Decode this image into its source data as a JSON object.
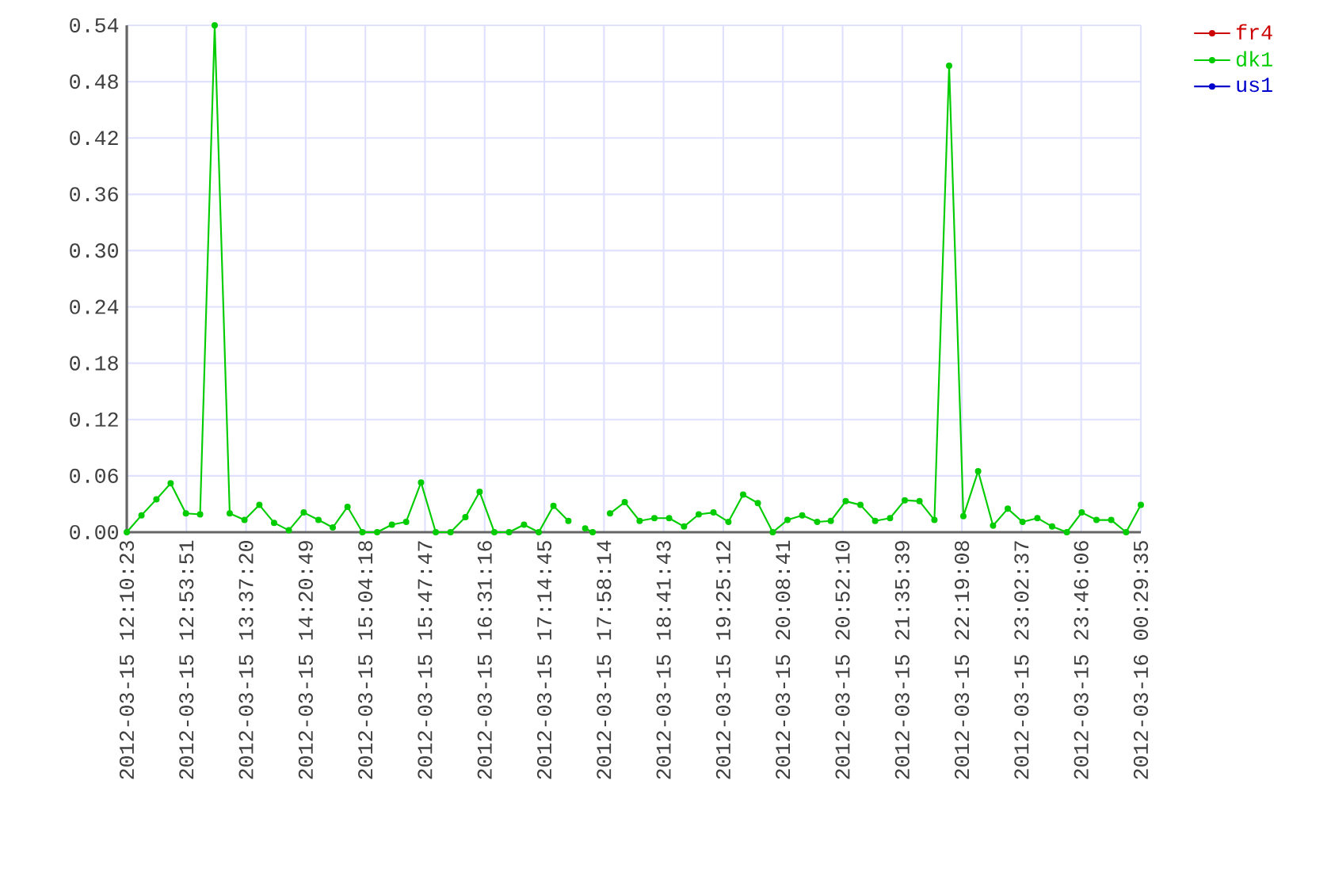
{
  "chart_data": {
    "type": "line",
    "x": [
      "2012-03-15T12:10:23",
      "2012-03-15T12:21:07",
      "2012-03-15T12:31:59",
      "2012-03-15T12:42:22",
      "2012-03-15T12:53:28",
      "2012-03-15T13:03:50",
      "2012-03-15T13:14:28",
      "2012-03-15T13:25:26",
      "2012-03-15T13:36:11",
      "2012-03-15T13:47:02",
      "2012-03-15T13:57:47",
      "2012-03-15T14:08:31",
      "2012-03-15T14:19:23",
      "2012-03-15T14:30:07",
      "2012-03-15T14:40:34",
      "2012-03-15T14:51:18",
      "2012-03-15T15:02:10",
      "2012-03-15T15:12:54",
      "2012-03-15T15:23:38",
      "2012-03-15T15:34:01",
      "2012-03-15T15:44:53",
      "2012-03-15T15:55:37",
      "2012-03-15T16:06:22",
      "2012-03-15T16:17:13",
      "2012-03-15T16:27:36",
      "2012-03-15T16:38:20",
      "2012-03-15T16:49:05",
      "2012-03-15T16:59:56",
      "2012-03-15T17:10:41",
      "2012-03-15T17:21:25",
      "2012-03-15T17:32:17",
      "2012-03-15T17:38:24",
      "2012-03-15T17:44:31",
      "2012-03-15T17:49:59",
      "2012-03-15T17:56:17",
      "2012-03-15T18:02:38",
      "2012-03-15T18:13:23",
      "2012-03-15T18:24:14",
      "2012-03-15T18:34:59",
      "2012-03-15T18:45:43",
      "2012-03-15T18:56:35",
      "2012-03-15T19:07:19",
      "2012-03-15T19:18:04",
      "2012-03-15T19:28:55",
      "2012-03-15T19:39:40",
      "2012-03-15T19:50:24",
      "2012-03-15T20:01:16",
      "2012-03-15T20:12:00",
      "2012-03-15T20:22:44",
      "2012-03-15T20:33:36",
      "2012-03-15T20:43:34",
      "2012-03-15T20:54:25",
      "2012-03-15T21:05:10",
      "2012-03-15T21:15:54",
      "2012-03-15T21:26:46",
      "2012-03-15T21:37:30",
      "2012-03-15T21:48:14",
      "2012-03-15T21:59:06",
      "2012-03-15T22:09:50",
      "2012-03-15T22:20:13",
      "2012-03-15T22:30:58",
      "2012-03-15T22:41:49",
      "2012-03-15T22:52:34",
      "2012-03-15T23:03:18",
      "2012-03-15T23:14:10",
      "2012-03-15T23:24:54",
      "2012-03-15T23:35:38",
      "2012-03-15T23:46:30",
      "2012-03-15T23:57:14",
      "2012-03-16T00:07:59",
      "2012-03-16T00:18:50",
      "2012-03-16T00:29:35"
    ],
    "series": [
      {
        "name": "fr4",
        "color": "#cc0000",
        "values": [
          null,
          null,
          null,
          null,
          null,
          null,
          null,
          null,
          null,
          null,
          null,
          null,
          null,
          null,
          null,
          null,
          null,
          null,
          null,
          null,
          null,
          null,
          null,
          null,
          null,
          null,
          null,
          null,
          null,
          null,
          null,
          null,
          null,
          null,
          null,
          null,
          null,
          null,
          null,
          null,
          null,
          null,
          null,
          null,
          null,
          null,
          null,
          null,
          null,
          null,
          null,
          null,
          null,
          null,
          null,
          null,
          null,
          null,
          null,
          null,
          null,
          null,
          null,
          null,
          null,
          null,
          null,
          null,
          null,
          null,
          null,
          null
        ]
      },
      {
        "name": "dk1",
        "color": "#00cc00",
        "values": [
          0,
          0.018,
          0.035,
          0.052,
          0.02,
          0.019,
          0.54,
          0.02,
          0.013,
          0.029,
          0.01,
          0.002,
          0.021,
          0.013,
          0.005,
          0.027,
          0,
          0,
          0.008,
          0.011,
          0.053,
          0,
          0,
          0.016,
          0.043,
          0,
          0,
          0.008,
          0,
          0.028,
          0.012,
          null,
          0.004,
          0,
          null,
          0.02,
          0.032,
          0.012,
          0.015,
          0.015,
          0.006,
          0.019,
          0.021,
          0.011,
          0.04,
          0.031,
          0,
          0.013,
          0.018,
          0.011,
          0.012,
          0.033,
          0.029,
          0.012,
          0.015,
          0.034,
          0.033,
          0.013,
          0.497,
          0.017,
          0.065,
          0.007,
          0.025,
          0.011,
          0.015,
          0.006,
          0,
          0.021,
          0.013,
          0.013,
          0,
          0.029
        ]
      },
      {
        "name": "us1",
        "color": "#0000cc",
        "values": [
          null,
          null,
          null,
          null,
          null,
          null,
          null,
          null,
          null,
          null,
          null,
          null,
          null,
          null,
          null,
          null,
          null,
          null,
          null,
          null,
          null,
          null,
          null,
          null,
          null,
          null,
          null,
          null,
          null,
          null,
          null,
          null,
          null,
          null,
          null,
          null,
          null,
          null,
          null,
          null,
          null,
          null,
          null,
          null,
          null,
          null,
          null,
          null,
          null,
          null,
          null,
          null,
          null,
          null,
          null,
          null,
          null,
          null,
          null,
          null,
          null,
          null,
          null,
          null,
          null,
          null,
          null,
          null,
          null,
          null,
          null,
          null
        ]
      }
    ],
    "xlim": [
      "2012-03-15T12:10:23",
      "2012-03-16T00:29:35"
    ],
    "xticks": [
      {
        "value": "2012-03-15T12:10:23",
        "label": "2012-03-15 12:10:23"
      },
      {
        "value": "2012-03-15T12:53:51",
        "label": "2012-03-15 12:53:51"
      },
      {
        "value": "2012-03-15T13:37:20",
        "label": "2012-03-15 13:37:20"
      },
      {
        "value": "2012-03-15T14:20:49",
        "label": "2012-03-15 14:20:49"
      },
      {
        "value": "2012-03-15T15:04:18",
        "label": "2012-03-15 15:04:18"
      },
      {
        "value": "2012-03-15T15:47:47",
        "label": "2012-03-15 15:47:47"
      },
      {
        "value": "2012-03-15T16:31:16",
        "label": "2012-03-15 16:31:16"
      },
      {
        "value": "2012-03-15T17:14:45",
        "label": "2012-03-15 17:14:45"
      },
      {
        "value": "2012-03-15T17:58:14",
        "label": "2012-03-15 17:58:14"
      },
      {
        "value": "2012-03-15T18:41:43",
        "label": "2012-03-15 18:41:43"
      },
      {
        "value": "2012-03-15T19:25:12",
        "label": "2012-03-15 19:25:12"
      },
      {
        "value": "2012-03-15T20:08:41",
        "label": "2012-03-15 20:08:41"
      },
      {
        "value": "2012-03-15T20:52:10",
        "label": "2012-03-15 20:52:10"
      },
      {
        "value": "2012-03-15T21:35:39",
        "label": "2012-03-15 21:35:39"
      },
      {
        "value": "2012-03-15T22:19:08",
        "label": "2012-03-15 22:19:08"
      },
      {
        "value": "2012-03-15T23:02:37",
        "label": "2012-03-15 23:02:37"
      },
      {
        "value": "2012-03-15T23:46:06",
        "label": "2012-03-15 23:46:06"
      },
      {
        "value": "2012-03-16T00:29:35",
        "label": "2012-03-16 00:29:35"
      }
    ],
    "ylim": [
      0,
      0.54
    ],
    "yticks": [
      {
        "value": 0,
        "label": "0.00"
      },
      {
        "value": 0.06,
        "label": "0.06"
      },
      {
        "value": 0.12,
        "label": "0.12"
      },
      {
        "value": 0.18,
        "label": "0.18"
      },
      {
        "value": 0.24,
        "label": "0.24"
      },
      {
        "value": 0.3,
        "label": "0.30"
      },
      {
        "value": 0.36,
        "label": "0.36"
      },
      {
        "value": 0.42,
        "label": "0.42"
      },
      {
        "value": 0.48,
        "label": "0.48"
      },
      {
        "value": 0.54,
        "label": "0.54"
      }
    ],
    "grid": true,
    "legend": "top right",
    "marker": "circle",
    "line_style": "solid"
  }
}
